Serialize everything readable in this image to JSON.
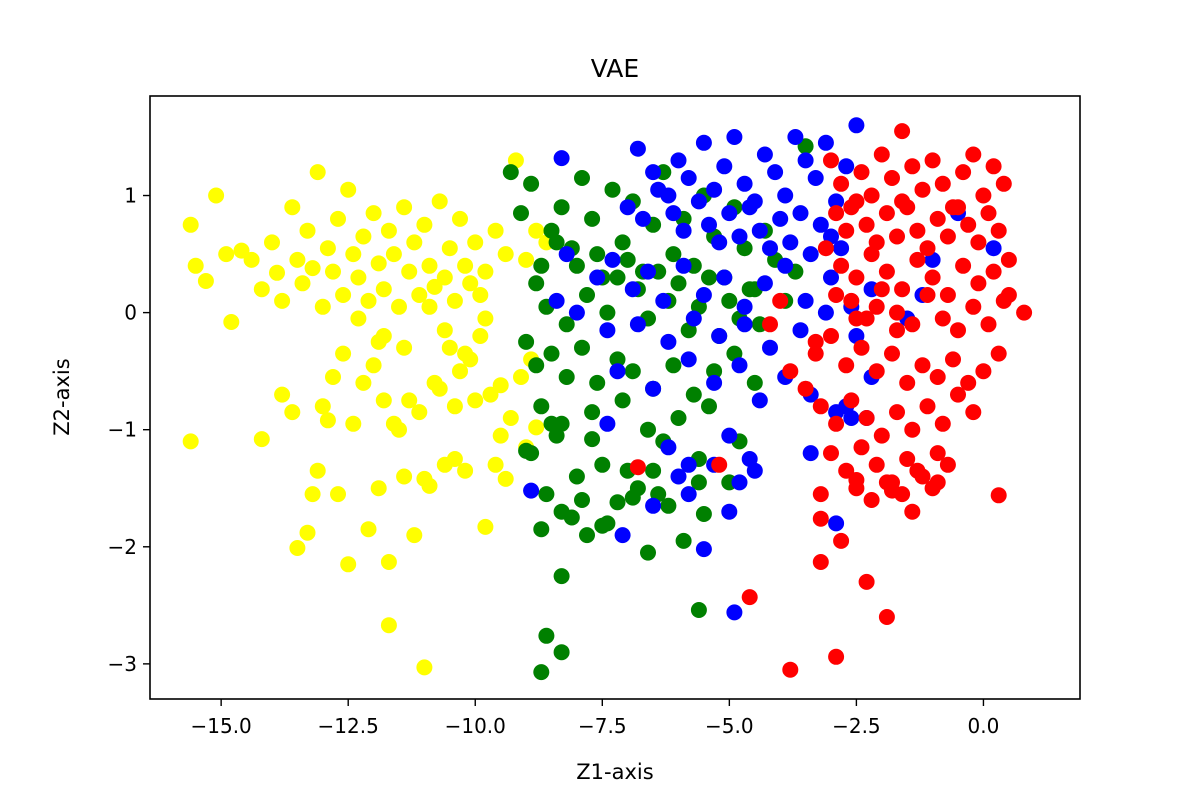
{
  "chart_data": {
    "type": "scatter",
    "title": "VAE",
    "xlabel": "Z1-axis",
    "ylabel": "Z2-axis",
    "xlim": [
      -16.4,
      1.9
    ],
    "ylim": [
      -3.3,
      1.85
    ],
    "xticks": [
      -15.0,
      -12.5,
      -10.0,
      -7.5,
      -5.0,
      -2.5,
      0.0
    ],
    "xtick_labels": [
      "−15.0",
      "−12.5",
      "−10.0",
      "−7.5",
      "−5.0",
      "−2.5",
      "0.0"
    ],
    "yticks": [
      1,
      0,
      -1,
      -2,
      -3
    ],
    "ytick_labels": [
      "1",
      "0",
      "−1",
      "−2",
      "−3"
    ],
    "grid": false,
    "legend": null,
    "marker_size": 8,
    "series": [
      {
        "color": "#ffff00",
        "x": [
          -15.6,
          -15.5,
          -15.3,
          -15.1,
          -14.9,
          -14.8,
          -14.6,
          -14.4,
          -14.2,
          -14.0,
          -13.9,
          -13.8,
          -13.6,
          -13.5,
          -13.4,
          -13.3,
          -13.2,
          -13.1,
          -13.0,
          -12.9,
          -12.8,
          -12.7,
          -12.6,
          -12.5,
          -12.4,
          -12.3,
          -12.2,
          -12.1,
          -12.0,
          -11.9,
          -11.8,
          -11.7,
          -11.6,
          -11.5,
          -11.4,
          -11.3,
          -11.2,
          -11.1,
          -11.0,
          -10.9,
          -10.8,
          -10.7,
          -10.6,
          -10.5,
          -10.4,
          -10.3,
          -10.2,
          -10.1,
          -10.0,
          -9.9,
          -9.8,
          -9.6,
          -9.4,
          -9.2,
          -9.0,
          -8.8,
          -8.6,
          -15.6,
          -14.2,
          -13.5,
          -13.3,
          -13.1,
          -12.7,
          -12.5,
          -12.1,
          -11.9,
          -11.7,
          -11.4,
          -11.2,
          -11.0,
          -10.9,
          -10.6,
          -10.4,
          -10.2,
          -9.8,
          -9.6,
          -9.4,
          -9.0,
          -8.8,
          -13.0,
          -12.8,
          -12.4,
          -11.8,
          -11.5,
          -11.1,
          -10.8,
          -10.3,
          -10.0,
          -9.7,
          -9.3,
          -13.8,
          -13.6,
          -12.9,
          -12.6,
          -12.2,
          -12.0,
          -11.6,
          -11.3,
          -10.7,
          -10.5,
          -10.1,
          -9.9,
          -9.5,
          -12.3,
          -11.9,
          -11.4,
          -10.9,
          -10.6,
          -10.2,
          -9.8,
          -9.1,
          -8.9,
          -11.7,
          -11.0,
          -10.4,
          -9.5,
          -13.2,
          -11.8
        ],
        "y": [
          0.75,
          0.4,
          0.27,
          1.0,
          0.5,
          -0.08,
          0.53,
          0.45,
          0.2,
          0.6,
          0.34,
          0.1,
          0.9,
          0.45,
          0.25,
          0.7,
          0.38,
          1.2,
          0.05,
          0.55,
          0.35,
          0.8,
          0.15,
          1.05,
          0.5,
          0.3,
          0.65,
          0.1,
          0.85,
          0.42,
          0.2,
          0.7,
          0.5,
          0.05,
          0.9,
          0.35,
          0.6,
          0.15,
          0.75,
          0.4,
          0.22,
          0.95,
          0.3,
          0.55,
          0.1,
          0.8,
          0.4,
          0.25,
          0.6,
          0.15,
          0.35,
          0.7,
          0.5,
          1.3,
          0.45,
          0.7,
          0.6,
          -1.1,
          -1.08,
          -2.01,
          -1.88,
          -1.35,
          -1.55,
          -2.15,
          -1.85,
          -1.5,
          -2.13,
          -1.4,
          -1.9,
          -1.42,
          -1.48,
          -1.3,
          -1.25,
          -1.35,
          -1.83,
          -1.3,
          -1.42,
          -1.15,
          -0.98,
          -0.8,
          -0.55,
          -0.95,
          -0.75,
          -1.0,
          -0.85,
          -0.6,
          -0.5,
          -0.75,
          -0.7,
          -0.9,
          -0.7,
          -0.85,
          -0.92,
          -0.35,
          -0.6,
          -0.45,
          -0.95,
          -0.75,
          -0.65,
          -0.3,
          -0.4,
          -0.2,
          -0.62,
          -0.05,
          -0.25,
          -0.3,
          0.05,
          -0.15,
          -0.35,
          -0.05,
          -0.55,
          -0.4,
          -2.67,
          -3.03,
          -0.8,
          -1.05,
          -1.55,
          -0.2
        ],
        "name": ""
      },
      {
        "color": "#008000",
        "x": [
          -9.3,
          -9.1,
          -8.9,
          -8.7,
          -8.5,
          -8.3,
          -8.1,
          -7.9,
          -7.7,
          -7.5,
          -7.3,
          -7.1,
          -6.9,
          -6.7,
          -6.5,
          -6.3,
          -6.1,
          -5.9,
          -5.7,
          -5.5,
          -5.3,
          -5.1,
          -4.9,
          -4.7,
          -4.5,
          -4.3,
          -4.1,
          -3.9,
          -3.7,
          -3.5,
          -8.8,
          -8.6,
          -8.4,
          -8.2,
          -8.0,
          -7.8,
          -7.6,
          -7.4,
          -7.2,
          -7.0,
          -6.8,
          -6.6,
          -6.4,
          -6.2,
          -6.0,
          -5.8,
          -5.6,
          -5.4,
          -5.2,
          -5.0,
          -4.8,
          -4.6,
          -4.4,
          -9.0,
          -8.8,
          -8.5,
          -8.2,
          -7.9,
          -7.6,
          -7.2,
          -6.9,
          -6.5,
          -6.1,
          -5.7,
          -5.3,
          -4.9,
          -4.5,
          -8.7,
          -8.3,
          -7.7,
          -7.1,
          -6.6,
          -6.0,
          -5.4,
          -4.8,
          -8.9,
          -8.4,
          -8.0,
          -7.5,
          -7.0,
          -6.3,
          -5.6,
          -5.0,
          -8.6,
          -8.3,
          -7.9,
          -7.4,
          -6.8,
          -6.2,
          -5.5,
          -8.7,
          -8.1,
          -7.2,
          -6.4,
          -5.6,
          -8.3,
          -7.8,
          -6.6,
          -5.9,
          -8.6,
          -8.3,
          -8.7,
          -5.6,
          -7.5,
          -6.9,
          -9.0,
          -8.5,
          -7.7,
          -6.5
        ],
        "y": [
          1.2,
          0.85,
          1.1,
          0.4,
          0.7,
          0.9,
          0.55,
          1.15,
          0.8,
          0.3,
          1.05,
          0.6,
          0.95,
          0.35,
          0.75,
          1.2,
          0.5,
          0.8,
          0.4,
          1.0,
          0.65,
          0.3,
          0.9,
          0.55,
          0.2,
          0.7,
          0.45,
          0.1,
          0.35,
          1.42,
          0.25,
          0.05,
          0.6,
          -0.1,
          0.4,
          0.15,
          0.5,
          0.0,
          0.3,
          0.45,
          0.2,
          -0.05,
          0.35,
          0.1,
          0.25,
          -0.15,
          0.05,
          0.3,
          -0.2,
          0.1,
          -0.05,
          0.2,
          -0.1,
          -0.25,
          -0.45,
          -0.35,
          -0.55,
          -0.3,
          -0.6,
          -0.4,
          -0.5,
          -0.65,
          -0.45,
          -0.7,
          -0.5,
          -0.35,
          -0.6,
          -0.8,
          -0.95,
          -0.85,
          -0.75,
          -1.0,
          -0.9,
          -0.8,
          -1.1,
          -1.2,
          -1.05,
          -1.4,
          -1.3,
          -1.35,
          -1.1,
          -1.25,
          -1.45,
          -1.55,
          -1.7,
          -1.6,
          -1.8,
          -1.5,
          -1.65,
          -1.72,
          -1.85,
          -1.75,
          -1.62,
          -1.55,
          -1.45,
          -2.25,
          -1.9,
          -2.05,
          -1.95,
          -2.76,
          -2.9,
          -3.07,
          -2.54,
          -1.82,
          -1.58,
          -1.18,
          -0.95,
          -1.08,
          -1.35
        ],
        "name": ""
      },
      {
        "color": "#0000ff",
        "x": [
          -6.8,
          -6.5,
          -6.2,
          -6.0,
          -5.8,
          -5.5,
          -5.3,
          -5.1,
          -4.9,
          -4.7,
          -4.5,
          -4.3,
          -4.1,
          -3.9,
          -3.7,
          -3.5,
          -3.3,
          -3.1,
          -2.9,
          -2.7,
          -2.5,
          -7.0,
          -6.7,
          -6.4,
          -6.1,
          -5.9,
          -5.6,
          -5.4,
          -5.2,
          -5.0,
          -4.8,
          -4.6,
          -4.4,
          -4.2,
          -4.0,
          -3.8,
          -3.6,
          -3.4,
          -3.2,
          -3.0,
          -2.8,
          -8.2,
          -7.6,
          -7.3,
          -6.9,
          -6.6,
          -6.3,
          -5.9,
          -5.5,
          -5.1,
          -4.7,
          -4.3,
          -3.9,
          -3.5,
          -3.0,
          -2.6,
          -2.2,
          -8.4,
          -8.0,
          -7.4,
          -6.8,
          -6.2,
          -5.7,
          -5.2,
          -4.7,
          -4.2,
          -3.6,
          -3.1,
          -2.5,
          -1.0,
          -1.2,
          -1.5,
          -7.2,
          -6.5,
          -5.8,
          -5.3,
          -4.8,
          -4.4,
          -3.9,
          -3.4,
          -2.9,
          -2.3,
          -8.9,
          -7.4,
          -6.2,
          -5.8,
          -5.0,
          -4.6,
          -3.4,
          -6.0,
          -5.8,
          -5.3,
          -5.0,
          -4.8,
          -4.5,
          -2.9,
          -2.7,
          -2.2,
          0.2,
          -0.5,
          -2.6,
          -8.3,
          -7.1,
          -6.5,
          -5.5,
          -4.9
        ],
        "y": [
          1.4,
          1.2,
          1.0,
          1.3,
          1.15,
          1.45,
          1.05,
          1.25,
          1.5,
          1.1,
          0.95,
          1.35,
          1.2,
          1.0,
          1.5,
          1.3,
          1.15,
          1.45,
          0.95,
          1.25,
          1.6,
          0.9,
          0.8,
          1.05,
          0.85,
          0.7,
          0.95,
          0.75,
          0.6,
          0.85,
          0.65,
          0.9,
          0.7,
          0.55,
          0.8,
          0.6,
          0.85,
          0.5,
          0.75,
          0.65,
          0.55,
          0.5,
          0.3,
          0.45,
          0.2,
          0.35,
          0.1,
          0.4,
          0.15,
          0.3,
          0.05,
          0.25,
          0.4,
          0.1,
          0.3,
          0.05,
          0.2,
          0.1,
          0.0,
          -0.15,
          -0.1,
          -0.25,
          -0.05,
          -0.2,
          -0.1,
          -0.3,
          -0.15,
          0.0,
          -0.2,
          0.45,
          0.15,
          -0.05,
          -0.5,
          -0.65,
          -0.4,
          -0.6,
          -0.45,
          -0.75,
          -0.55,
          -0.7,
          -0.85,
          -0.9,
          -1.52,
          -0.95,
          -1.15,
          -1.3,
          -1.05,
          -1.25,
          -1.2,
          -1.4,
          -1.55,
          -1.3,
          -1.7,
          -1.45,
          -1.35,
          -1.8,
          -0.8,
          -0.55,
          0.55,
          0.85,
          -0.9,
          1.32,
          -1.9,
          -1.65,
          -2.02,
          -2.56
        ],
        "name": ""
      },
      {
        "color": "#ff0000",
        "x": [
          -3.0,
          -2.8,
          -2.6,
          -2.4,
          -2.2,
          -2.0,
          -1.8,
          -1.6,
          -1.4,
          -1.2,
          -1.0,
          -0.8,
          -0.6,
          -0.4,
          -0.2,
          0.0,
          0.2,
          0.4,
          -2.9,
          -2.7,
          -2.5,
          -2.3,
          -2.1,
          -1.9,
          -1.7,
          -1.5,
          -1.3,
          -1.1,
          -0.9,
          -0.7,
          -0.5,
          -0.3,
          -0.1,
          0.1,
          0.3,
          0.5,
          -3.1,
          -2.8,
          -2.5,
          -2.2,
          -1.9,
          -1.6,
          -1.3,
          -1.0,
          -0.7,
          -0.4,
          -0.1,
          0.2,
          0.5,
          0.8,
          -2.6,
          -2.3,
          -2.0,
          -1.7,
          -1.4,
          -1.1,
          -0.8,
          -0.5,
          -0.2,
          0.1,
          0.4,
          -3.3,
          -3.0,
          -2.7,
          -2.4,
          -2.1,
          -1.8,
          -1.5,
          -1.2,
          -0.9,
          -0.6,
          -0.3,
          0.0,
          0.3,
          -3.5,
          -3.2,
          -2.9,
          -2.6,
          -2.3,
          -2.0,
          -1.7,
          -1.4,
          -1.1,
          -0.8,
          -0.5,
          -0.2,
          -3.0,
          -2.7,
          -2.4,
          -2.1,
          -1.8,
          -1.5,
          -1.2,
          -0.9,
          -2.5,
          -2.2,
          -1.9,
          -1.6,
          -1.3,
          -1.0,
          -0.7,
          -3.2,
          -2.8,
          -2.3,
          -1.9,
          -1.4,
          -0.9,
          -4.2,
          -3.8,
          -3.3,
          -2.9,
          -2.5,
          -2.1,
          -1.7,
          0.3,
          -3.2,
          -2.9,
          -2.5,
          -1.8,
          -3.8,
          -3.2,
          -4.6,
          -5.2,
          -4.0,
          -6.8,
          -1.6
        ],
        "y": [
          1.3,
          1.1,
          0.9,
          1.2,
          1.0,
          1.35,
          1.15,
          0.95,
          1.25,
          1.05,
          1.3,
          1.1,
          0.9,
          1.2,
          1.35,
          1.0,
          1.25,
          1.1,
          0.85,
          0.7,
          0.95,
          0.75,
          0.6,
          0.85,
          0.65,
          0.9,
          0.7,
          0.55,
          0.8,
          0.65,
          0.9,
          0.75,
          0.6,
          0.85,
          0.7,
          0.45,
          0.55,
          0.4,
          0.3,
          0.5,
          0.35,
          0.2,
          0.45,
          0.3,
          0.15,
          0.4,
          0.25,
          0.35,
          0.15,
          0.0,
          0.1,
          -0.05,
          0.2,
          0.0,
          -0.1,
          0.15,
          -0.05,
          -0.15,
          0.05,
          -0.1,
          0.1,
          -0.35,
          -0.2,
          -0.45,
          -0.3,
          -0.5,
          -0.35,
          -0.6,
          -0.45,
          -0.55,
          -0.4,
          -0.6,
          -0.5,
          -0.35,
          -0.65,
          -0.8,
          -0.95,
          -0.75,
          -0.9,
          -1.05,
          -0.85,
          -1.0,
          -0.8,
          -0.95,
          -0.7,
          -0.85,
          -1.2,
          -1.35,
          -1.15,
          -1.3,
          -1.45,
          -1.25,
          -1.4,
          -1.2,
          -1.5,
          -1.6,
          -1.45,
          -1.55,
          -1.35,
          -1.5,
          -1.3,
          -1.55,
          -1.95,
          -2.3,
          -2.6,
          -1.7,
          -1.45,
          -0.1,
          -0.5,
          -0.25,
          0.15,
          -0.05,
          0.05,
          -0.15,
          -1.56,
          -2.13,
          -2.94,
          -1.43,
          -1.52,
          -3.05,
          -1.76,
          -2.43,
          -1.3,
          0.1,
          -1.32,
          1.55
        ],
        "name": ""
      }
    ]
  }
}
